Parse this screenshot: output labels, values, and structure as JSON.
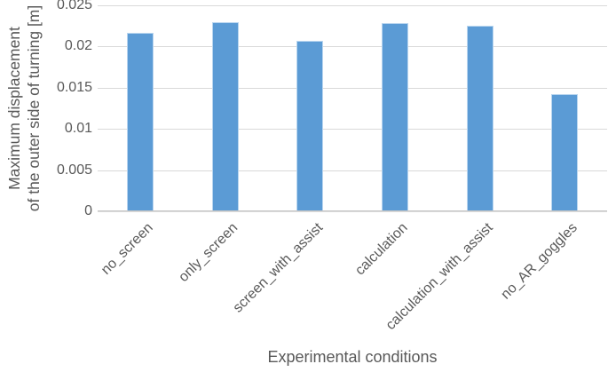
{
  "chart_data": {
    "type": "bar",
    "categories": [
      "no_screen",
      "only_screen",
      "screen_with_assist",
      "calculation",
      "calculation_with_assist",
      "no_AR_goggles"
    ],
    "values": [
      0.0217,
      0.023,
      0.0207,
      0.0228,
      0.0225,
      0.0142
    ],
    "title": "",
    "xlabel": "Experimental conditions",
    "ylabel": "Maximum displacement of the outer side of turning [m]",
    "ylim": [
      0,
      0.025
    ],
    "yticks": [
      0,
      0.005,
      0.01,
      0.015,
      0.02,
      0.025
    ],
    "ytick_labels": [
      "0",
      "0.005",
      "0.01",
      "0.015",
      "0.02",
      "0.025"
    ],
    "grid": true,
    "legend": false,
    "bar_color": "#5b9bd5",
    "bar_border_color": "#b9d5ef",
    "gridline_color": "#d9d9d9",
    "axis_line_color": "#c6c6c6",
    "text_color": "#595959",
    "background_color": "#ffffff"
  },
  "labels": {
    "y_title_line1": "Maximum displacement",
    "y_title_line2": "of the outer side of turning [m]",
    "x_title": "Experimental conditions"
  }
}
